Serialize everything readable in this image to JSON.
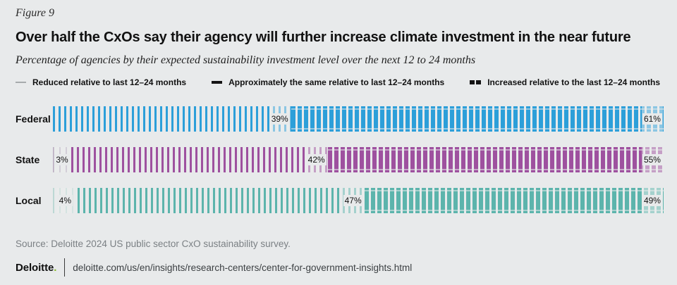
{
  "figure_label": "Figure 9",
  "title": "Over half the CxOs say their agency will further increase climate investment in the near future",
  "subtitle": "Percentage of agencies by their expected sustainability investment level over the next 12 to 24 months",
  "legend": [
    {
      "label": "Reduced relative to last 12–24 months",
      "marker": "thin-light-dash"
    },
    {
      "label": "Approximately the same relative to last 12–24 months",
      "marker": "medium-dash"
    },
    {
      "label": "Increased relative to the last 12–24 months",
      "marker": "thick-dash"
    }
  ],
  "chart_data": {
    "type": "bar",
    "orientation": "horizontal-stacked",
    "categories": [
      "Federal",
      "State",
      "Local"
    ],
    "series": [
      {
        "name": "Reduced relative to last 12–24 months",
        "values": [
          0,
          3,
          4
        ]
      },
      {
        "name": "Approximately the same relative to last 12–24 months",
        "values": [
          39,
          42,
          47
        ]
      },
      {
        "name": "Increased relative to the last 12–24 months",
        "values": [
          61,
          55,
          49
        ]
      }
    ],
    "value_suffix": "%",
    "xlim": [
      0,
      100
    ],
    "legend_position": "top",
    "grid": false
  },
  "rows": [
    {
      "category": "Federal",
      "color": "#2C9FD9",
      "light_color": "#BCCFDC"
    },
    {
      "category": "State",
      "color": "#9E519F",
      "light_color": "#BBAEC2"
    },
    {
      "category": "Local",
      "color": "#5CB4AC",
      "light_color": "#BCD8D4"
    }
  ],
  "theme": {
    "page_background": "#E8EAEB",
    "notch_overlay": "rgba(232,234,235,0.55)",
    "deloitte_green": "#86BC25"
  },
  "source": "Source: Deloitte 2024 US public sector CxO sustainability survey.",
  "footer": {
    "logo_text": "Deloitte",
    "logo_dot": ".",
    "url": "deloitte.com/us/en/insights/research-centers/center-for-government-insights.html"
  }
}
